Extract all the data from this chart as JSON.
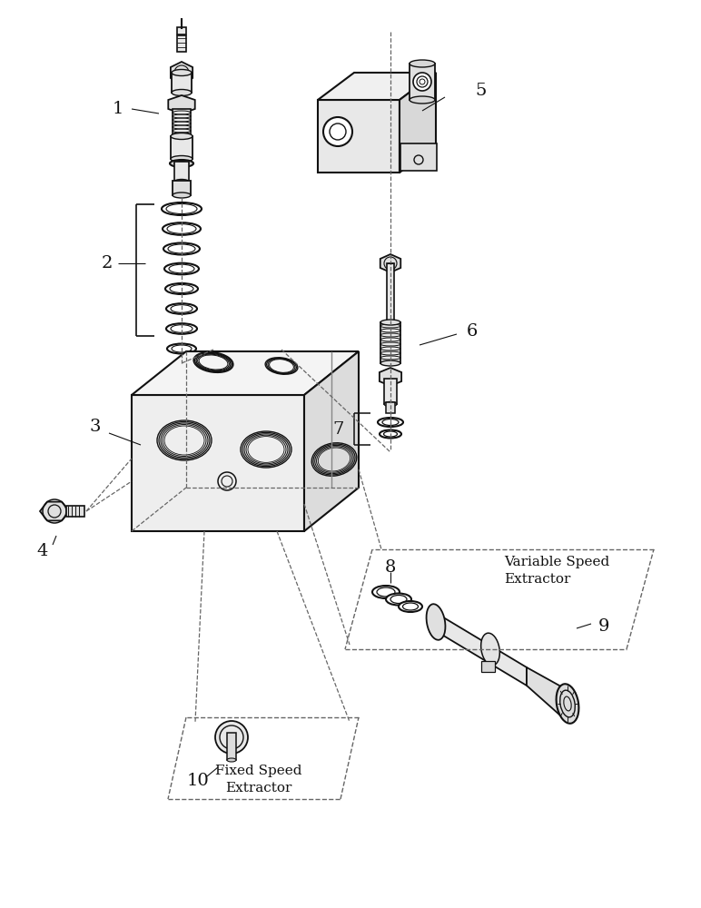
{
  "bg_color": "#ffffff",
  "line_color": "#111111",
  "dashed_color": "#666666",
  "label_color": "#111111",
  "fig_width": 7.72,
  "fig_height": 10.0,
  "dpi": 100,
  "parts": {
    "part1_label": "1",
    "part2_label": "2",
    "part3_label": "3",
    "part4_label": "4",
    "part5_label": "5",
    "part6_label": "6",
    "part7_label": "7",
    "part8_label": "8",
    "part9_label": "9",
    "part10_label": "10"
  },
  "annotations": {
    "variable_speed": "Variable Speed\nExtractor",
    "fixed_speed": "Fixed Speed\nExtractor"
  },
  "font_size_labels": 14,
  "font_size_annotations": 11
}
